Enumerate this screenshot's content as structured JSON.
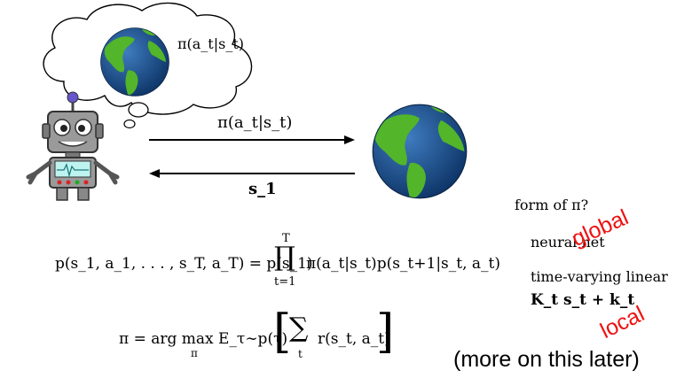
{
  "thought": {
    "policy": "π(a_t|s_t)"
  },
  "arrows": {
    "top_label": "π(a_t|s_t)",
    "bottom_label": "s_1"
  },
  "side": {
    "question": "form of π?",
    "option1": "neural net",
    "option2": "time-varying linear",
    "option3": "K_t s_t + k_t",
    "tag_global": "global",
    "tag_local": "local",
    "later": "(more on this later)"
  },
  "eq1": {
    "lhs": "p(s_1, a_1, . . . , s_T, a_T) = p(s_1)",
    "prod_upper": "T",
    "prod_symbol": "∏",
    "prod_lower": "t=1",
    "rhs": "π(a_t|s_t)p(s_t+1|s_t, a_t)"
  },
  "eq2": {
    "lhs": "π = arg max",
    "argmax_sub": "π",
    "expect": "E_τ∼p(τ)",
    "bracket_left": "[",
    "sum_symbol": "∑",
    "sum_sub": "t",
    "reward": "r(s_t, a_t)",
    "bracket_right": "]"
  },
  "colors": {
    "ocean": "#1a4f8f",
    "land": "#4caf1c",
    "robot_gray": "#8e8e8e",
    "label_red": "#ee1111"
  }
}
